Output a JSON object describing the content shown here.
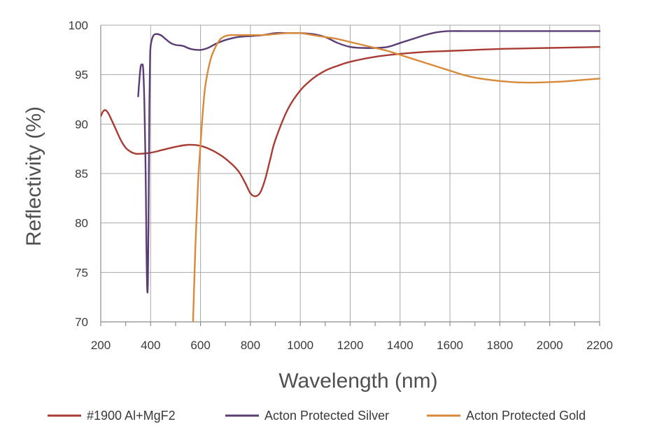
{
  "chart_data": {
    "type": "line",
    "title": "",
    "xlabel": "Wavelength (nm)",
    "ylabel": "Reflectivity (%)",
    "xlim": [
      200,
      2200
    ],
    "ylim": [
      70,
      100
    ],
    "x_ticks": [
      200,
      400,
      600,
      800,
      1000,
      1200,
      1400,
      1600,
      1800,
      2000,
      2200
    ],
    "y_ticks": [
      70,
      75,
      80,
      85,
      90,
      95,
      100
    ],
    "grid": true,
    "legend_position": "bottom",
    "series": [
      {
        "name": "#1900 Al+MgF2",
        "color": "#a83b32",
        "points": [
          [
            200,
            90.8
          ],
          [
            210,
            91.3
          ],
          [
            220,
            91.4
          ],
          [
            230,
            91.1
          ],
          [
            240,
            90.6
          ],
          [
            260,
            89.5
          ],
          [
            280,
            88.4
          ],
          [
            300,
            87.6
          ],
          [
            320,
            87.2
          ],
          [
            340,
            87.0
          ],
          [
            360,
            87.0
          ],
          [
            400,
            87.1
          ],
          [
            450,
            87.4
          ],
          [
            500,
            87.7
          ],
          [
            550,
            87.9
          ],
          [
            600,
            87.8
          ],
          [
            650,
            87.3
          ],
          [
            700,
            86.5
          ],
          [
            750,
            85.3
          ],
          [
            780,
            84.0
          ],
          [
            800,
            83.0
          ],
          [
            820,
            82.7
          ],
          [
            840,
            83.1
          ],
          [
            860,
            84.5
          ],
          [
            880,
            86.5
          ],
          [
            900,
            88.4
          ],
          [
            950,
            91.5
          ],
          [
            1000,
            93.4
          ],
          [
            1050,
            94.6
          ],
          [
            1100,
            95.4
          ],
          [
            1150,
            95.9
          ],
          [
            1200,
            96.3
          ],
          [
            1300,
            96.8
          ],
          [
            1400,
            97.1
          ],
          [
            1500,
            97.3
          ],
          [
            1600,
            97.4
          ],
          [
            1700,
            97.5
          ],
          [
            1800,
            97.6
          ],
          [
            1900,
            97.65
          ],
          [
            2000,
            97.7
          ],
          [
            2100,
            97.75
          ],
          [
            2200,
            97.8
          ]
        ]
      },
      {
        "name": "Acton Protected Silver",
        "color": "#5a3d74",
        "points": [
          [
            350,
            92.8
          ],
          [
            355,
            94.5
          ],
          [
            360,
            95.8
          ],
          [
            365,
            96.0
          ],
          [
            370,
            95.6
          ],
          [
            375,
            92.0
          ],
          [
            380,
            85.0
          ],
          [
            383,
            78.0
          ],
          [
            386,
            73.5
          ],
          [
            389,
            74.0
          ],
          [
            392,
            82.0
          ],
          [
            395,
            92.0
          ],
          [
            398,
            97.0
          ],
          [
            402,
            98.2
          ],
          [
            410,
            98.9
          ],
          [
            420,
            99.1
          ],
          [
            440,
            99.0
          ],
          [
            460,
            98.6
          ],
          [
            480,
            98.2
          ],
          [
            500,
            98.0
          ],
          [
            530,
            97.9
          ],
          [
            560,
            97.6
          ],
          [
            600,
            97.5
          ],
          [
            630,
            97.7
          ],
          [
            660,
            98.1
          ],
          [
            700,
            98.5
          ],
          [
            750,
            98.8
          ],
          [
            800,
            98.9
          ],
          [
            850,
            99.0
          ],
          [
            900,
            99.2
          ],
          [
            950,
            99.2
          ],
          [
            1000,
            99.2
          ],
          [
            1050,
            99.1
          ],
          [
            1100,
            98.8
          ],
          [
            1150,
            98.2
          ],
          [
            1200,
            97.8
          ],
          [
            1250,
            97.7
          ],
          [
            1300,
            97.7
          ],
          [
            1350,
            97.8
          ],
          [
            1400,
            98.2
          ],
          [
            1450,
            98.6
          ],
          [
            1500,
            99.0
          ],
          [
            1550,
            99.3
          ],
          [
            1600,
            99.4
          ],
          [
            1700,
            99.4
          ],
          [
            1800,
            99.4
          ],
          [
            1900,
            99.4
          ],
          [
            2000,
            99.4
          ],
          [
            2100,
            99.4
          ],
          [
            2200,
            99.4
          ]
        ]
      },
      {
        "name": "Acton Protected Gold",
        "color": "#d9893a",
        "points": [
          [
            570,
            70.0
          ],
          [
            580,
            78.0
          ],
          [
            590,
            84.0
          ],
          [
            600,
            88.0
          ],
          [
            610,
            91.5
          ],
          [
            620,
            94.0
          ],
          [
            640,
            96.5
          ],
          [
            660,
            97.8
          ],
          [
            680,
            98.6
          ],
          [
            700,
            98.9
          ],
          [
            720,
            99.0
          ],
          [
            750,
            99.0
          ],
          [
            800,
            99.0
          ],
          [
            850,
            99.0
          ],
          [
            900,
            99.1
          ],
          [
            950,
            99.2
          ],
          [
            1000,
            99.2
          ],
          [
            1050,
            99.0
          ],
          [
            1100,
            98.8
          ],
          [
            1150,
            98.6
          ],
          [
            1200,
            98.3
          ],
          [
            1250,
            98.0
          ],
          [
            1300,
            97.7
          ],
          [
            1350,
            97.4
          ],
          [
            1400,
            97.0
          ],
          [
            1450,
            96.6
          ],
          [
            1500,
            96.2
          ],
          [
            1550,
            95.8
          ],
          [
            1600,
            95.4
          ],
          [
            1650,
            95.0
          ],
          [
            1700,
            94.7
          ],
          [
            1750,
            94.5
          ],
          [
            1800,
            94.35
          ],
          [
            1850,
            94.25
          ],
          [
            1900,
            94.2
          ],
          [
            1950,
            94.2
          ],
          [
            2000,
            94.25
          ],
          [
            2050,
            94.3
          ],
          [
            2100,
            94.4
          ],
          [
            2150,
            94.5
          ],
          [
            2200,
            94.6
          ]
        ]
      }
    ]
  }
}
